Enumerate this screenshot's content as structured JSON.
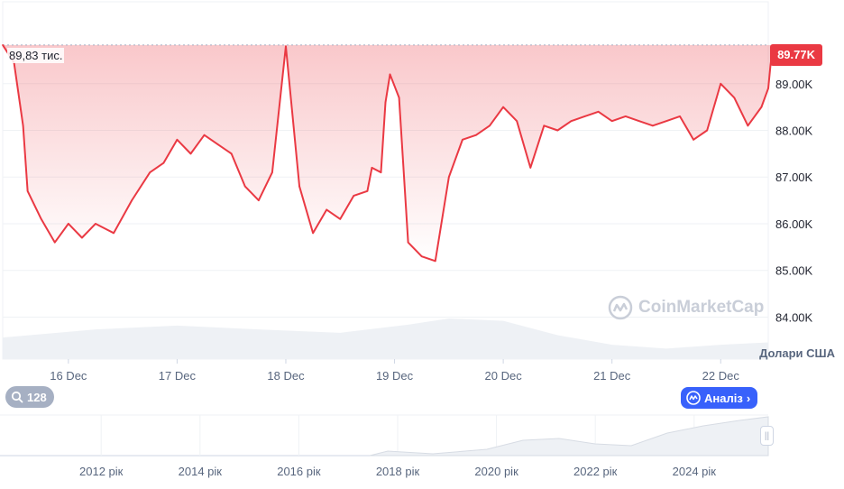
{
  "chart_data": {
    "type": "line",
    "title": "",
    "current_price_label": "89.77K",
    "hover_label": "89,83 тис.",
    "y_unit_label": "Долари США",
    "y_ticks": [
      "89.00K",
      "88.00K",
      "87.00K",
      "86.00K",
      "85.00K",
      "84.00K"
    ],
    "y_tick_values": [
      89000,
      88000,
      87000,
      86000,
      85000,
      84000
    ],
    "ylim": [
      83100,
      90600
    ],
    "x_ticks": [
      "16 Dec",
      "17 Dec",
      "18 Dec",
      "19 Dec",
      "20 Dec",
      "21 Dec",
      "22 Dec"
    ],
    "x_tick_values": [
      "2024-12-16",
      "2024-12-17",
      "2024-12-18",
      "2024-12-19",
      "2024-12-20",
      "2024-12-21",
      "2024-12-22"
    ],
    "x_range": [
      "2024-12-15T09:30",
      "2024-12-22T10:30"
    ],
    "grid": true,
    "series": [
      {
        "x": [
          "2024-12-15T09:30",
          "2024-12-15T12:00",
          "2024-12-15T14:00",
          "2024-12-15T15:00",
          "2024-12-15T18:00",
          "2024-12-15T21:00",
          "2024-12-16T00:00",
          "2024-12-16T03:00",
          "2024-12-16T06:00",
          "2024-12-16T10:00",
          "2024-12-16T14:00",
          "2024-12-16T18:00",
          "2024-12-16T21:00",
          "2024-12-17T00:00",
          "2024-12-17T03:00",
          "2024-12-17T06:00",
          "2024-12-17T09:00",
          "2024-12-17T12:00",
          "2024-12-17T15:00",
          "2024-12-17T18:00",
          "2024-12-17T21:00",
          "2024-12-18T00:00",
          "2024-12-18T03:00",
          "2024-12-18T06:00",
          "2024-12-18T09:00",
          "2024-12-18T12:00",
          "2024-12-18T15:00",
          "2024-12-18T18:00",
          "2024-12-18T19:00",
          "2024-12-18T21:00",
          "2024-12-18T22:00",
          "2024-12-18T23:00",
          "2024-12-19T01:00",
          "2024-12-19T03:00",
          "2024-12-19T06:00",
          "2024-12-19T09:00",
          "2024-12-19T12:00",
          "2024-12-19T15:00",
          "2024-12-19T18:00",
          "2024-12-19T21:00",
          "2024-12-20T00:00",
          "2024-12-20T03:00",
          "2024-12-20T06:00",
          "2024-12-20T09:00",
          "2024-12-20T12:00",
          "2024-12-20T15:00",
          "2024-12-20T18:00",
          "2024-12-20T21:00",
          "2024-12-21T00:00",
          "2024-12-21T03:00",
          "2024-12-21T06:00",
          "2024-12-21T09:00",
          "2024-12-21T12:00",
          "2024-12-21T15:00",
          "2024-12-21T18:00",
          "2024-12-21T21:00",
          "2024-12-22T00:00",
          "2024-12-22T03:00",
          "2024-12-22T06:00",
          "2024-12-22T09:00",
          "2024-12-22T10:30"
        ],
        "y": [
          89830,
          89450,
          88100,
          86700,
          86100,
          85600,
          86000,
          85700,
          86000,
          85800,
          86500,
          87100,
          87300,
          87800,
          87500,
          87900,
          87700,
          87500,
          86800,
          86500,
          87100,
          89800,
          86800,
          85800,
          86300,
          86100,
          86600,
          86700,
          87200,
          87100,
          88600,
          89200,
          88700,
          85600,
          85300,
          85200,
          87000,
          87800,
          87900,
          88100,
          88500,
          88200,
          87200,
          88100,
          88000,
          88200,
          88300,
          88400,
          88200,
          88300,
          88200,
          88100,
          88200,
          88300,
          87800,
          88000,
          89000,
          88700,
          88100,
          88500,
          88900
        ],
        "y_extra_last": [
          89400,
          89770
        ]
      }
    ],
    "volume_series": {
      "x": [
        "2024-12-15T09:30",
        "2024-12-16T06:00",
        "2024-12-17T00:00",
        "2024-12-17T18:00",
        "2024-12-18T12:00",
        "2024-12-19T03:00",
        "2024-12-19T12:00",
        "2024-12-20T00:00",
        "2024-12-20T12:00",
        "2024-12-21T00:00",
        "2024-12-21T12:00",
        "2024-12-22T00:00",
        "2024-12-22T10:30"
      ],
      "y": [
        0.45,
        0.62,
        0.7,
        0.62,
        0.55,
        0.72,
        0.85,
        0.8,
        0.5,
        0.3,
        0.22,
        0.3,
        0.35
      ]
    },
    "navigator": {
      "x_ticks": [
        "2012 рік",
        "2014 рік",
        "2016 рік",
        "2018 рік",
        "2020 рік",
        "2022 рік",
        "2024 рік"
      ]
    }
  },
  "ui": {
    "zoom_pill_value": "128",
    "analyze_label": "Аналіз",
    "watermark_text": "CoinMarketCap",
    "colors": {
      "line": "#ea3943",
      "badge": "#ea3943",
      "analyze": "#3861fb",
      "grid": "#eff2f5"
    }
  }
}
